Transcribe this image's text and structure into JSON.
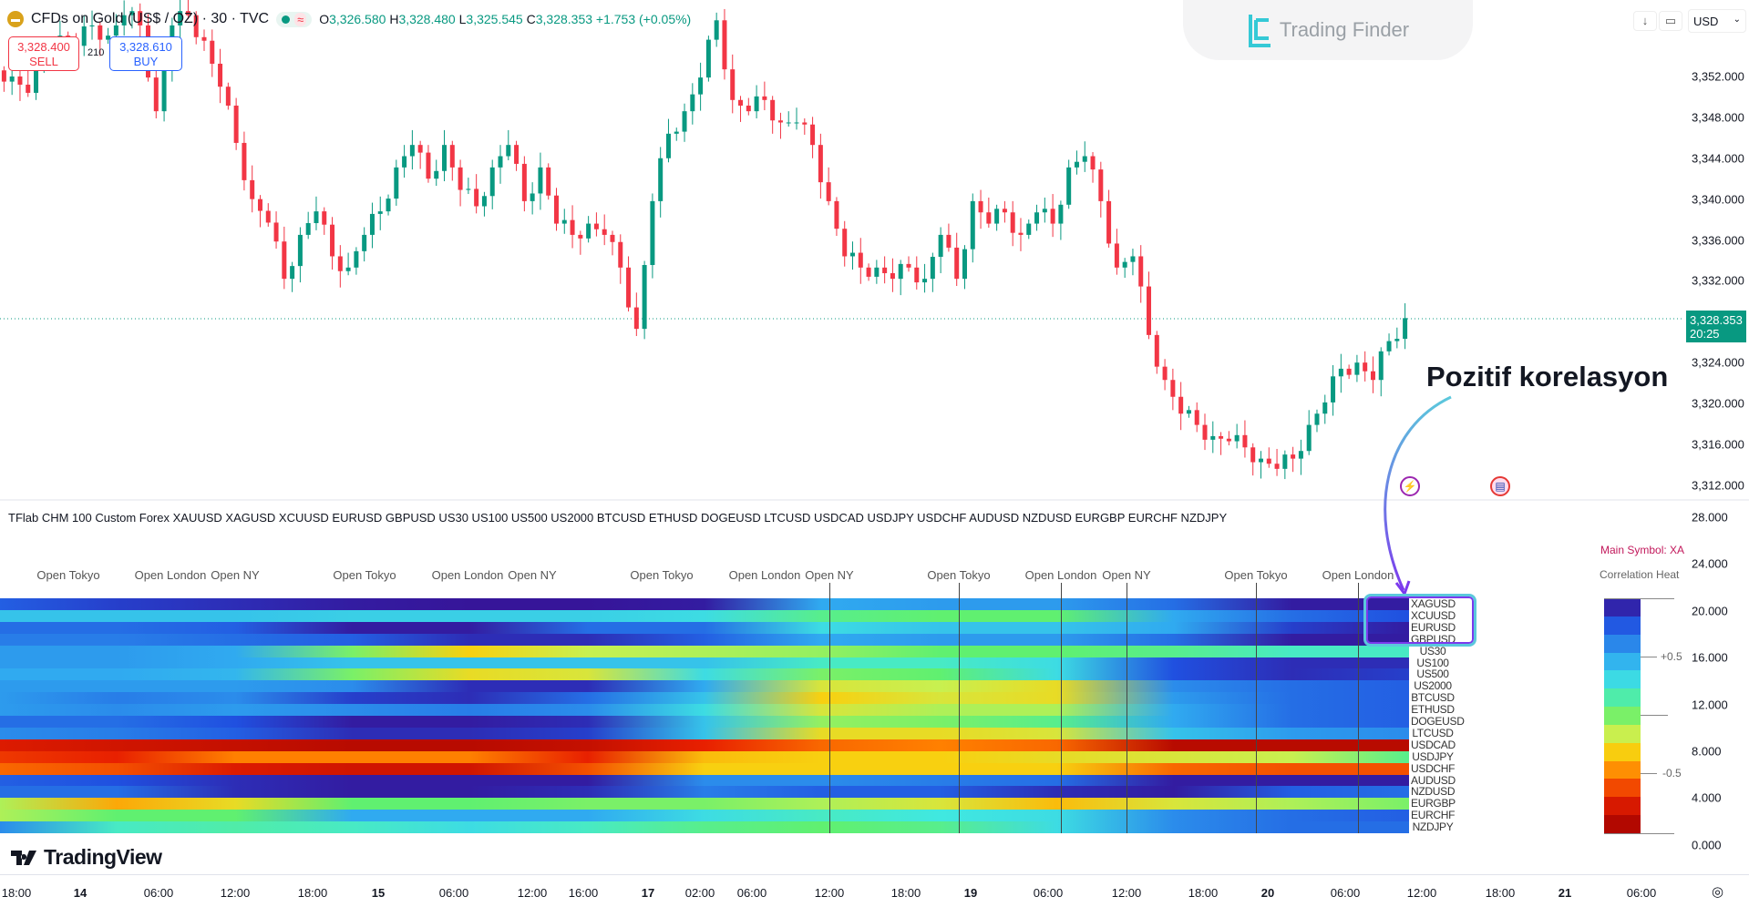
{
  "header": {
    "title": "CFDs on Gold (US$ / OZ) · 30 · TVC",
    "ohlc": {
      "o_label": "O",
      "o": "3,326.580",
      "h_label": "H",
      "h": "3,328.480",
      "l_label": "L",
      "l": "3,325.545",
      "c_label": "C",
      "c": "3,328.353",
      "change": "+1.753 (+0.05%)"
    },
    "sell_price": "3,328.400",
    "sell_label": "SELL",
    "spread": "210",
    "buy_price": "3,328.610",
    "buy_label": "BUY"
  },
  "watermark": "Trading Finder",
  "toolbar": {
    "currency": "USD",
    "currency_icon": "chevron-down-icon"
  },
  "price_axis": {
    "labels": [
      "3,352.000",
      "3,348.000",
      "3,344.000",
      "3,340.000",
      "3,336.000",
      "3,332.000",
      "3,324.000",
      "3,320.000",
      "3,316.000",
      "3,312.000"
    ],
    "current_price": "3,328.353",
    "countdown": "20:25"
  },
  "candles": {
    "closes": [
      3352,
      3350.4,
      3354.5,
      3356,
      3355,
      3357,
      3356,
      3358,
      3357,
      3348.6,
      3357,
      3358,
      3355.5,
      3351,
      3345.5,
      3340,
      3337.7,
      3332.2,
      3336.5,
      3338.8,
      3334.4,
      3333.3,
      3336.5,
      3338.8,
      3343.1,
      3345.3,
      3342,
      3345.3,
      3340.9,
      3339.3,
      3343.1,
      3345.3,
      3339.8,
      3343.1,
      3337.6,
      3336.5,
      3337.6,
      3336.5,
      3333.3,
      3327.3,
      3339.8,
      3346.4,
      3348.6,
      3351.9,
      3357.5,
      3349.7,
      3348.6,
      3349.7,
      3347.5,
      3347.5,
      3345.3,
      3339.8,
      3334.4,
      3333.3,
      3333.3,
      3332.2,
      3333.3,
      3332.2,
      3336.5,
      3332.2,
      3339.8,
      3337.6,
      3338.7,
      3336.5,
      3338.7,
      3337.6,
      3343.1,
      3344.2,
      3339.8,
      3333.3,
      3334.4,
      3326.7,
      3322.3,
      3319,
      3317.9,
      3316.8,
      3316.3,
      3315.7,
      3314.6,
      3313.6,
      3314.6,
      3317.9,
      3320.1,
      3323.4,
      3324,
      3322.3,
      3326.1,
      3328.353
    ],
    "up_color": "#089981",
    "down_color": "#f23645"
  },
  "annotation": {
    "text": "Pozitif korelasyon"
  },
  "indicator": {
    "title": "TFlab CHM 100 Custom Forex XAUUSD XAGUSD XCUUSD EURUSD GBPUSD US30 US100 US500 US2000 BTCUSD ETHUSD DOGEUSD LTCUSD USDCAD USDJPY USDCHF AUDUSD NZDUSD EURGBP EURCHF NZDJPY",
    "sessions": [
      "Open Tokyo",
      "Open London",
      "Open NY",
      "Open Tokyo",
      "Open London",
      "Open NY",
      "Open Tokyo",
      "Open London",
      "Open NY",
      "Open Tokyo",
      "Open London",
      "Open NY",
      "Open Tokyo",
      "Open London"
    ],
    "axis_labels": [
      "28.000",
      "24.000",
      "20.000",
      "16.000",
      "12.000",
      "8.000",
      "4.000",
      "0.000"
    ],
    "main_symbol": "Main Symbol: XAUUSD",
    "legend_title": "Correlation Heat",
    "legend_ticks": [
      "+0.5",
      "-0.5"
    ],
    "rows": [
      {
        "symbol": "XAGUSD",
        "values": [
          0.75,
          0.85,
          0.9,
          0.95,
          0.97,
          0.97,
          0.95,
          0.5,
          0.55,
          0.55,
          0.7,
          0.95,
          0.95
        ]
      },
      {
        "symbol": "XCUUSD",
        "values": [
          0.4,
          0.4,
          0.4,
          0.35,
          0.35,
          0.35,
          0.3,
          0.1,
          0.05,
          0.05,
          0.5,
          0.7,
          0.8
        ]
      },
      {
        "symbol": "EURUSD",
        "values": [
          0.7,
          0.7,
          0.75,
          0.95,
          0.95,
          0.7,
          0.7,
          0.3,
          0.4,
          0.4,
          0.5,
          0.85,
          0.95
        ]
      },
      {
        "symbol": "GBPUSD",
        "values": [
          0.65,
          0.65,
          0.7,
          0.75,
          0.9,
          0.9,
          0.75,
          0.5,
          0.55,
          0.55,
          0.7,
          0.95,
          0.95
        ]
      },
      {
        "symbol": "US30",
        "values": [
          0.55,
          0.55,
          0.5,
          0.0,
          -0.3,
          -0.15,
          -0.1,
          -0.05,
          0.05,
          0.05,
          0.1,
          0.2,
          0.2
        ]
      },
      {
        "symbol": "US100",
        "values": [
          0.55,
          0.55,
          0.5,
          0.4,
          0.4,
          0.4,
          0.4,
          0.2,
          0.2,
          0.3,
          0.8,
          0.9,
          0.9
        ]
      },
      {
        "symbol": "US500",
        "values": [
          0.5,
          0.5,
          0.45,
          0.0,
          -0.25,
          -0.2,
          0.3,
          0.0,
          0.05,
          0.3,
          0.8,
          0.9,
          0.85
        ]
      },
      {
        "symbol": "US2000",
        "values": [
          0.55,
          0.55,
          0.55,
          0.6,
          0.9,
          0.9,
          0.5,
          -0.2,
          -0.15,
          -0.25,
          0.6,
          0.7,
          0.75
        ]
      },
      {
        "symbol": "BTCUSD",
        "values": [
          0.55,
          0.65,
          0.6,
          0.85,
          0.9,
          0.7,
          0.4,
          -0.3,
          -0.2,
          -0.25,
          0.55,
          0.7,
          0.75
        ]
      },
      {
        "symbol": "ETHUSD",
        "values": [
          0.55,
          0.6,
          0.55,
          0.6,
          0.65,
          0.6,
          0.3,
          -0.2,
          -0.1,
          -0.1,
          0.5,
          0.7,
          0.75
        ]
      },
      {
        "symbol": "DOGEUSD",
        "values": [
          0.7,
          0.7,
          0.8,
          0.95,
          0.95,
          0.9,
          0.4,
          -0.05,
          0.0,
          0.1,
          0.5,
          0.7,
          0.75
        ]
      },
      {
        "symbol": "LTCUSD",
        "values": [
          0.6,
          0.65,
          0.75,
          0.9,
          0.9,
          0.85,
          0.4,
          -0.25,
          -0.25,
          -0.2,
          0.4,
          0.55,
          0.6
        ]
      },
      {
        "symbol": "USDCAD",
        "values": [
          -0.75,
          -0.8,
          -0.85,
          -0.9,
          -0.9,
          -0.85,
          -0.7,
          -0.55,
          -0.5,
          -0.55,
          -0.9,
          -0.9,
          -0.9
        ]
      },
      {
        "symbol": "USDJPY",
        "values": [
          -0.65,
          -0.7,
          -0.5,
          -0.5,
          -0.5,
          -0.7,
          -0.35,
          -0.3,
          -0.3,
          -0.25,
          -0.2,
          -0.15,
          0.1
        ]
      },
      {
        "symbol": "USDCHF",
        "values": [
          -0.55,
          -0.6,
          -0.75,
          -0.8,
          -0.8,
          -0.6,
          -0.3,
          -0.3,
          -0.3,
          -0.3,
          -0.55,
          -0.6,
          -0.6
        ]
      },
      {
        "symbol": "AUDUSD",
        "values": [
          0.75,
          0.8,
          0.9,
          0.95,
          0.95,
          0.95,
          0.6,
          0.6,
          0.65,
          0.7,
          0.95,
          0.95,
          0.95
        ]
      },
      {
        "symbol": "NZDUSD",
        "values": [
          0.7,
          0.7,
          0.9,
          0.95,
          0.95,
          0.9,
          0.65,
          0.75,
          0.75,
          0.9,
          0.95,
          0.75,
          0.7
        ]
      },
      {
        "symbol": "EURGBP",
        "values": [
          -0.1,
          -0.4,
          -0.25,
          0.05,
          0.05,
          0.0,
          0.0,
          -0.1,
          -0.2,
          -0.35,
          -0.2,
          -0.1,
          0.0
        ]
      },
      {
        "symbol": "EURCHF",
        "values": [
          -0.1,
          0.05,
          0.05,
          0.5,
          0.5,
          0.5,
          0.3,
          0.2,
          0.25,
          0.3,
          0.6,
          0.7,
          0.75
        ]
      },
      {
        "symbol": "NZDJPY",
        "values": [
          0.6,
          0.2,
          0.15,
          0.2,
          0.3,
          0.2,
          0.1,
          0.05,
          0.1,
          0.3,
          0.6,
          0.7,
          0.7
        ]
      }
    ]
  },
  "brand": "TradingView",
  "time_axis": [
    {
      "t": "18:00"
    },
    {
      "t": "14",
      "bold": true
    },
    {
      "t": "06:00"
    },
    {
      "t": "12:00"
    },
    {
      "t": "18:00"
    },
    {
      "t": "15",
      "bold": true
    },
    {
      "t": "06:00"
    },
    {
      "t": "12:00"
    },
    {
      "t": "16:00"
    },
    {
      "t": "17",
      "bold": true
    },
    {
      "t": "02:00"
    },
    {
      "t": "06:00"
    },
    {
      "t": "12:00"
    },
    {
      "t": "18:00"
    },
    {
      "t": "19",
      "bold": true
    },
    {
      "t": "06:00"
    },
    {
      "t": "12:00"
    },
    {
      "t": "18:00"
    },
    {
      "t": "20",
      "bold": true
    },
    {
      "t": "06:00"
    },
    {
      "t": "12:00"
    },
    {
      "t": "18:00"
    },
    {
      "t": "21",
      "bold": true
    },
    {
      "t": "06:00"
    }
  ]
}
